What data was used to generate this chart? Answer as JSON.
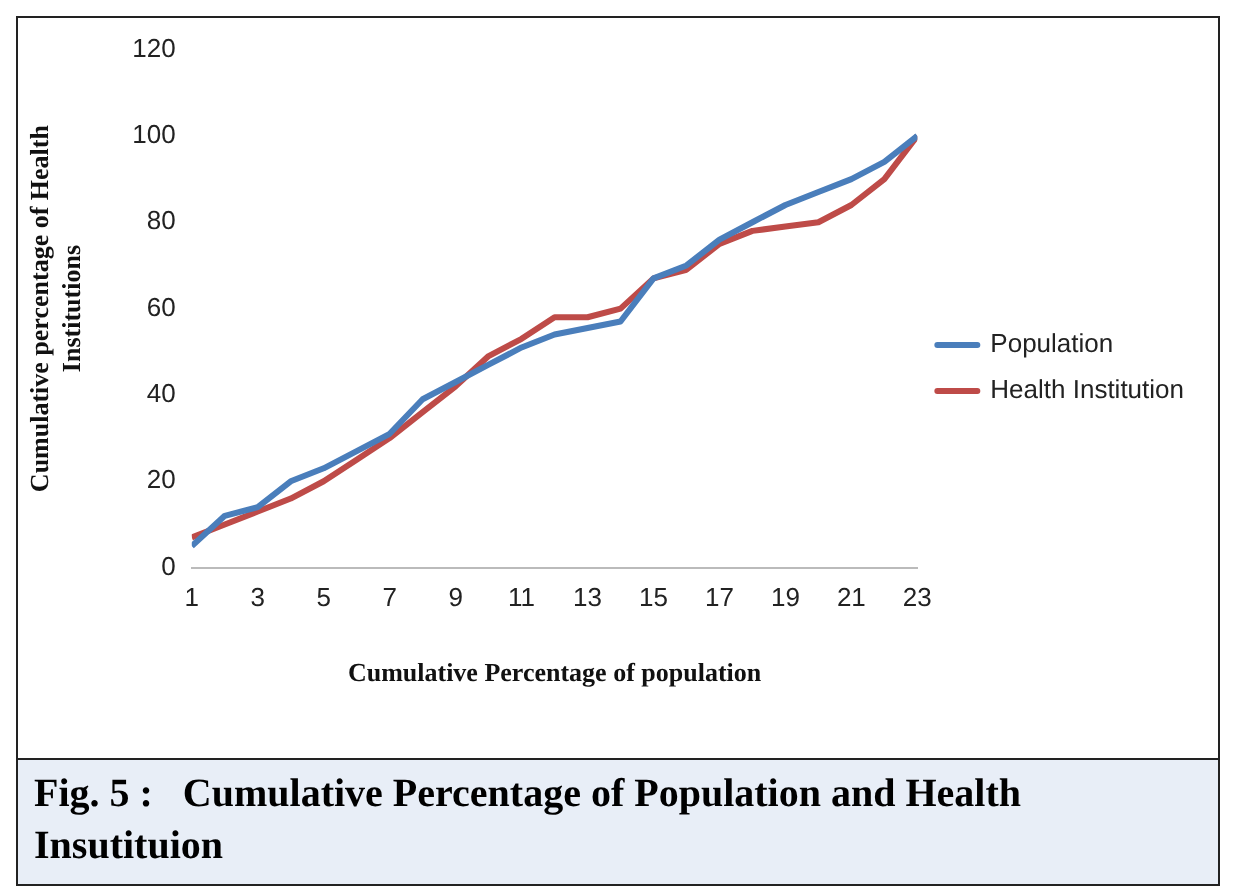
{
  "chart_data": {
    "type": "line",
    "title": "Fig. 5 :   Cumulative Percentage of Population and Health Insutituion",
    "xlabel": "Cumulative Percentage of population",
    "ylabel": "Cumulative percentage of Health Institutions",
    "x": [
      1,
      2,
      3,
      4,
      5,
      6,
      7,
      8,
      9,
      10,
      11,
      12,
      13,
      14,
      15,
      16,
      17,
      18,
      19,
      20,
      21,
      22,
      23
    ],
    "xlim": [
      1,
      23
    ],
    "xticks": [
      1,
      3,
      5,
      7,
      9,
      11,
      13,
      15,
      17,
      19,
      21,
      23
    ],
    "series": [
      {
        "name": "Population",
        "color": "#4a7ebb",
        "values": [
          5,
          12,
          14,
          20,
          23,
          27,
          31,
          39,
          43,
          47,
          51,
          54,
          55.5,
          57,
          67,
          70,
          76,
          80,
          84,
          87,
          90,
          94,
          100
        ]
      },
      {
        "name": "Health Institution",
        "color": "#be4b48",
        "values": [
          7,
          10,
          13,
          16,
          20,
          25,
          30,
          36,
          42,
          49,
          53,
          58,
          58,
          60,
          67,
          69,
          75,
          78,
          79,
          80,
          84,
          90,
          100
        ]
      }
    ],
    "ylim": [
      0,
      120
    ],
    "yticks": [
      0,
      20,
      40,
      60,
      80,
      100,
      120
    ],
    "grid": false,
    "legend": "right",
    "marker": "none"
  }
}
